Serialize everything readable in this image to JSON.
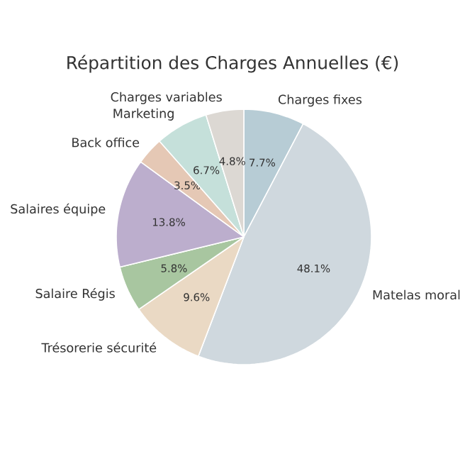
{
  "chart_data": {
    "type": "pie",
    "title": "Répartition des Charges Annuelles (€)",
    "categories": [
      "Charges fixes",
      "Matelas moral",
      "Trésorerie sécurité",
      "Salaire Régis",
      "Salaires équipe",
      "Back office",
      "Marketing",
      "Charges variables"
    ],
    "values": [
      7.7,
      48.1,
      9.6,
      5.8,
      13.8,
      3.5,
      6.7,
      4.8
    ],
    "colors": [
      "#b7ccd5",
      "#cfd8de",
      "#ead9c4",
      "#a8c6a0",
      "#bcaecd",
      "#e5c8b5",
      "#c5e0da",
      "#dcd8d3"
    ],
    "value_labels": [
      "7.7%",
      "48.1%",
      "9.6%",
      "5.8%",
      "13.8%",
      "3.5%",
      "6.7%",
      "4.8%"
    ]
  }
}
